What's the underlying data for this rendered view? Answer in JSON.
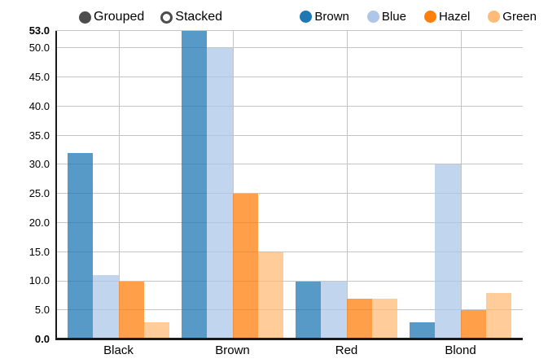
{
  "controls": {
    "mode_options": [
      {
        "label": "Grouped",
        "selected": true
      },
      {
        "label": "Stacked",
        "selected": false
      }
    ]
  },
  "legend": {
    "items": [
      {
        "label": "Brown",
        "color": "#1f77b4"
      },
      {
        "label": "Blue",
        "color": "#aec7e8"
      },
      {
        "label": "Hazel",
        "color": "#ff7f0e"
      },
      {
        "label": "Green",
        "color": "#ffbb78"
      }
    ],
    "position": "top-right"
  },
  "chart_data": {
    "type": "bar",
    "mode": "grouped",
    "categories": [
      "Black",
      "Brown",
      "Red",
      "Blond"
    ],
    "series": [
      {
        "name": "Brown",
        "color": "#1f77b4",
        "values": [
          32,
          53,
          10,
          3
        ]
      },
      {
        "name": "Blue",
        "color": "#aec7e8",
        "values": [
          11,
          50,
          10,
          30
        ]
      },
      {
        "name": "Hazel",
        "color": "#ff7f0e",
        "values": [
          10,
          25,
          7,
          5
        ]
      },
      {
        "name": "Green",
        "color": "#ffbb78",
        "values": [
          3,
          15,
          7,
          8
        ]
      }
    ],
    "title": "",
    "xlabel": "",
    "ylabel": "",
    "ylim": [
      0,
      53
    ],
    "yticks": [
      0,
      5,
      10,
      15,
      20,
      25,
      30,
      35,
      40,
      45,
      50,
      53
    ],
    "ytick_labels": [
      "0.0",
      "5.0",
      "10.0",
      "15.0",
      "20.0",
      "25.0",
      "30.0",
      "35.0",
      "40.0",
      "45.0",
      "50.0",
      "53.0"
    ],
    "bold_tick_labels": [
      "0.0",
      "53.0"
    ],
    "grid": true
  },
  "colors": {
    "axis": "#1a1a1a",
    "gridline": "#c4c4c4",
    "radio": "#4d4d4d",
    "bar_opacity": 0.75
  }
}
